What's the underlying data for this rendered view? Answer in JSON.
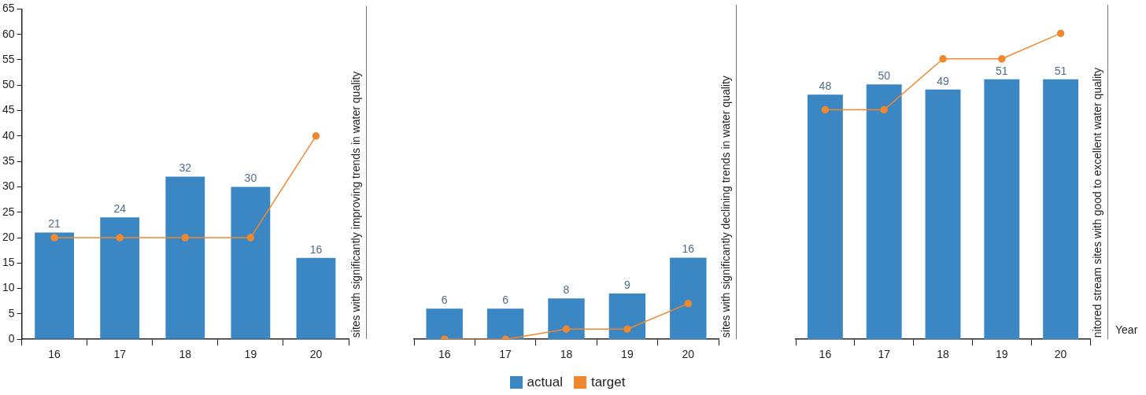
{
  "chart_data": [
    {
      "type": "bar",
      "title": "sites with significantly improving trends in water quality",
      "categories": [
        "16",
        "17",
        "18",
        "19",
        "20"
      ],
      "series": [
        {
          "name": "actual",
          "color": "#3a87c4",
          "values": [
            21,
            24,
            32,
            30,
            16
          ],
          "value_labels": [
            "21",
            "24",
            "32",
            "30",
            "16"
          ]
        },
        {
          "name": "target",
          "type": "line",
          "color": "#f0882e",
          "values": [
            20,
            20,
            20,
            20,
            40
          ]
        }
      ],
      "marker": "circle",
      "ylim": [
        0,
        65
      ],
      "yticks": [
        0,
        5,
        10,
        15,
        20,
        25,
        30,
        35,
        40,
        45,
        50,
        55,
        60,
        65
      ],
      "legend": "bottom"
    },
    {
      "type": "bar",
      "title": "sites with significantly declining trends in water quality",
      "categories": [
        "16",
        "17",
        "18",
        "19",
        "20"
      ],
      "series": [
        {
          "color": "#3a87c4",
          "values": [
            6,
            6,
            8,
            9,
            16
          ],
          "value_labels": [
            "6",
            "6",
            "8",
            "9",
            "16"
          ]
        },
        {
          "type": "line",
          "color": "#f0882e",
          "values": [
            0,
            0,
            2,
            2,
            7
          ]
        }
      ],
      "marker": "circle",
      "ylim": [
        0,
        65
      ],
      "yticks": [
        0,
        5,
        10,
        15,
        20,
        25,
        30,
        35,
        40,
        45,
        50,
        55,
        60,
        65
      ],
      "tick_labels": "x"
    },
    {
      "type": "bar",
      "title": "nitored stream sites with good to excellent water quality",
      "xlabel": "Year",
      "categories": [
        "16",
        "17",
        "18",
        "19",
        "20"
      ],
      "series": [
        {
          "color": "#3a87c4",
          "values": [
            48,
            50,
            49,
            51,
            51
          ],
          "value_labels": [
            "48",
            "50",
            "49",
            "51",
            "51"
          ]
        },
        {
          "type": "line",
          "color": "#f0882e",
          "values": [
            45,
            45,
            55,
            55,
            60
          ]
        }
      ],
      "marker": "circle",
      "ylim": [
        0,
        65
      ],
      "yticks": [
        0,
        5,
        10,
        15,
        20,
        25,
        30,
        35,
        40,
        45,
        50,
        55,
        60,
        65
      ],
      "tick_labels": "x"
    }
  ]
}
